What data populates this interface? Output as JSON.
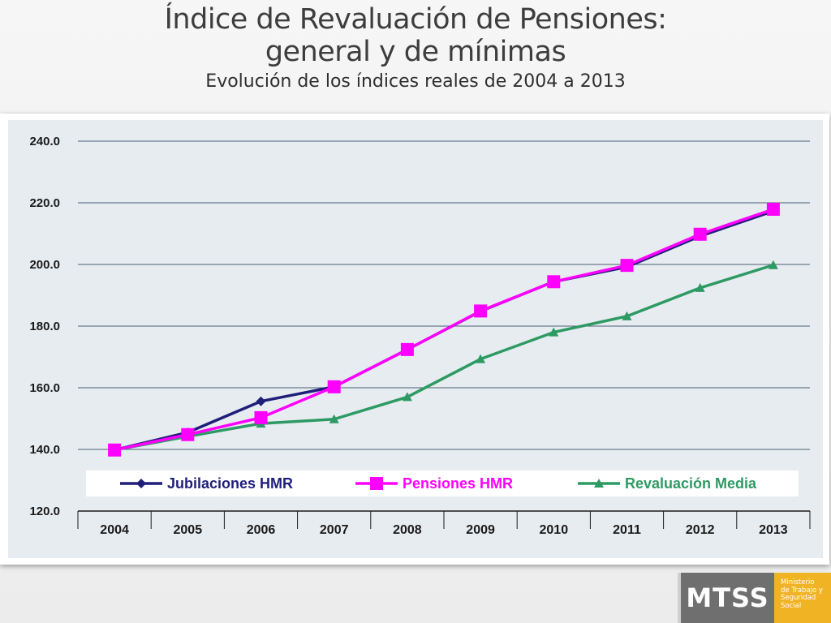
{
  "slide": {
    "title_line1": "Índice de Revaluación de Pensiones:",
    "title_line2": "general y de mínimas",
    "subtitle": "Evolución de los índices reales de 2004 a 2013"
  },
  "logo": {
    "mark": "MTSS",
    "text": "Ministerio\nde Trabajo y\nSeguridad\nSocial",
    "mark_color": "#6f6f6f",
    "text_color": "#f0b323"
  },
  "chart_data": {
    "type": "line",
    "title": "",
    "xlabel": "",
    "ylabel": "",
    "categories": [
      "2004",
      "2005",
      "2006",
      "2007",
      "2008",
      "2009",
      "2010",
      "2011",
      "2012",
      "2013"
    ],
    "ylim": [
      120,
      240
    ],
    "y_ticks": [
      "120.0",
      "140.0",
      "160.0",
      "180.0",
      "200.0",
      "220.0",
      "240.0"
    ],
    "grid": true,
    "legend_position": "bottom",
    "series": [
      {
        "name": "Jubilaciones HMR",
        "color": "#1f1f7a",
        "marker": "diamond",
        "values": [
          139.8,
          145.5,
          155.6,
          160.3,
          172.4,
          184.8,
          194.4,
          199.2,
          209.2,
          217.3
        ]
      },
      {
        "name": "Pensiones HMR",
        "color": "#ff00ff",
        "marker": "square",
        "values": [
          139.8,
          144.8,
          150.3,
          160.3,
          172.4,
          184.9,
          194.4,
          199.7,
          209.8,
          217.9
        ]
      },
      {
        "name": "Revaluación Media",
        "color": "#2e9a63",
        "marker": "triangle",
        "values": [
          139.8,
          144.2,
          148.4,
          149.8,
          157.0,
          169.3,
          178.0,
          183.2,
          192.4,
          199.8
        ]
      }
    ]
  }
}
